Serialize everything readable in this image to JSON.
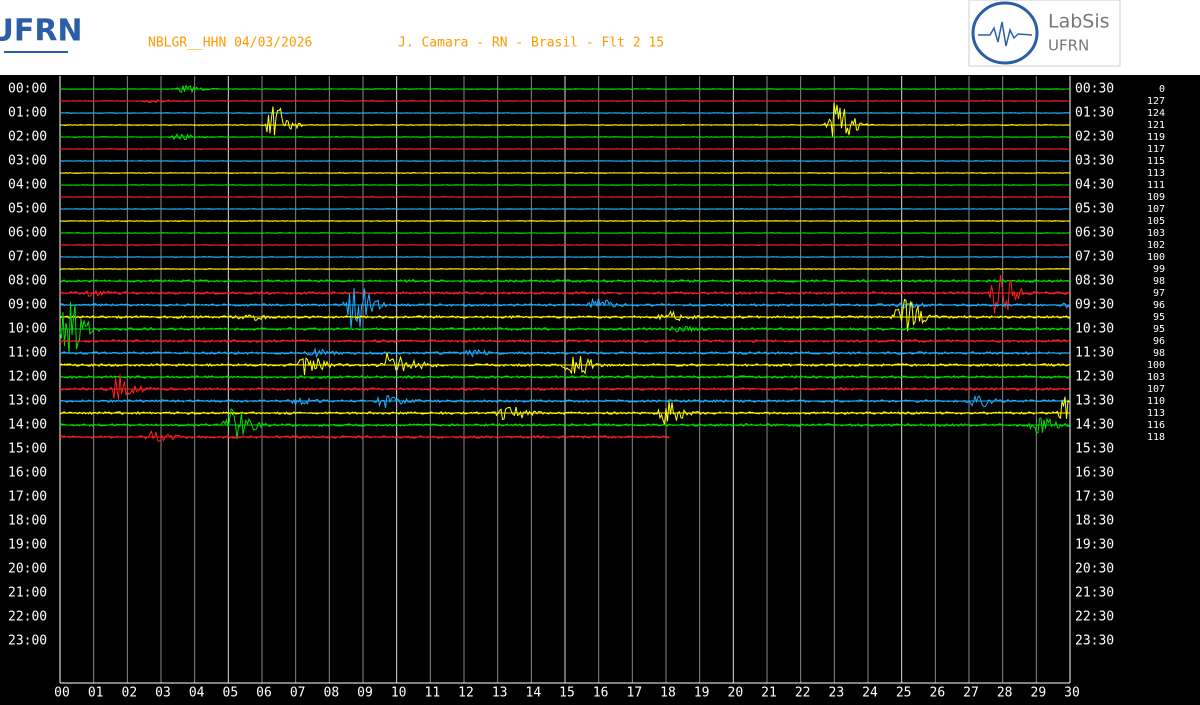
{
  "header": {
    "station": "NBLGR__HHN 04/03/2026",
    "location": "J. Camara - RN - Brasil - Flt 2 15",
    "logo_left": "UFRN",
    "logo_right": {
      "title": "LabSis",
      "subtitle": "UFRN"
    }
  },
  "left_labels": [
    "00:00",
    "01:00",
    "02:00",
    "03:00",
    "04:00",
    "05:00",
    "06:00",
    "07:00",
    "08:00",
    "09:00",
    "10:00",
    "11:00",
    "12:00",
    "13:00",
    "14:00",
    "15:00",
    "16:00",
    "17:00",
    "18:00",
    "19:00",
    "20:00",
    "21:00",
    "22:00",
    "23:00"
  ],
  "right_labels": [
    "00:30",
    "01:30",
    "02:30",
    "03:30",
    "04:30",
    "05:30",
    "06:30",
    "07:30",
    "08:30",
    "09:30",
    "10:30",
    "11:30",
    "12:30",
    "13:30",
    "14:30",
    "15:30",
    "16:30",
    "17:30",
    "18:30",
    "19:30",
    "20:30",
    "21:30",
    "22:30",
    "23:30"
  ],
  "counts": [
    "0",
    "127",
    "124",
    "121",
    "119",
    "117",
    "115",
    "113",
    "111",
    "109",
    "107",
    "105",
    "103",
    "102",
    "100",
    "99",
    "98",
    "97",
    "96",
    "95",
    "95",
    "96",
    "98",
    "100",
    "103",
    "107",
    "110",
    "113",
    "116",
    "118"
  ],
  "x_labels": [
    "00",
    "01",
    "02",
    "03",
    "04",
    "05",
    "06",
    "07",
    "08",
    "09",
    "10",
    "11",
    "12",
    "13",
    "14",
    "15",
    "16",
    "17",
    "18",
    "19",
    "20",
    "21",
    "22",
    "23",
    "24",
    "25",
    "26",
    "27",
    "28",
    "29",
    "30"
  ]
}
